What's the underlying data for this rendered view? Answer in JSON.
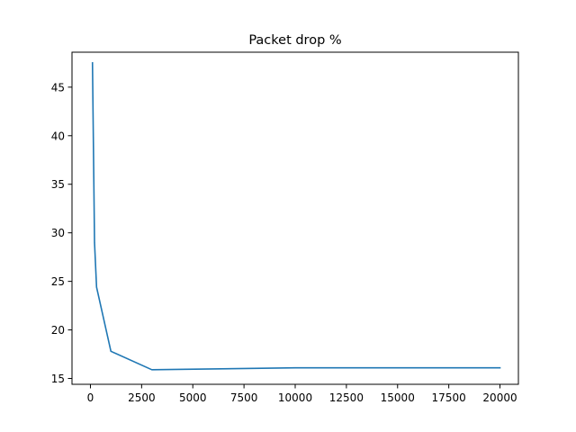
{
  "chart_data": {
    "type": "line",
    "title": "Packet drop %",
    "xlabel": "",
    "ylabel": "",
    "xlim": [
      -900,
      20900
    ],
    "ylim": [
      14.4,
      48.6
    ],
    "grid": false,
    "xticks": [
      0,
      2500,
      5000,
      7500,
      10000,
      12500,
      15000,
      17500,
      20000
    ],
    "xtick_labels": [
      "0",
      "2500",
      "5000",
      "7500",
      "10000",
      "12500",
      "15000",
      "17500",
      "20000"
    ],
    "yticks": [
      15,
      20,
      25,
      30,
      35,
      40,
      45
    ],
    "ytick_labels": [
      "15",
      "20",
      "25",
      "30",
      "35",
      "40",
      "45"
    ],
    "series": [
      {
        "color": "#1f77b4",
        "x": [
          100,
          200,
          300,
          1000,
          3000,
          10000,
          20000
        ],
        "y": [
          47.5,
          29.0,
          24.4,
          17.8,
          15.9,
          16.1,
          16.1
        ]
      }
    ]
  }
}
